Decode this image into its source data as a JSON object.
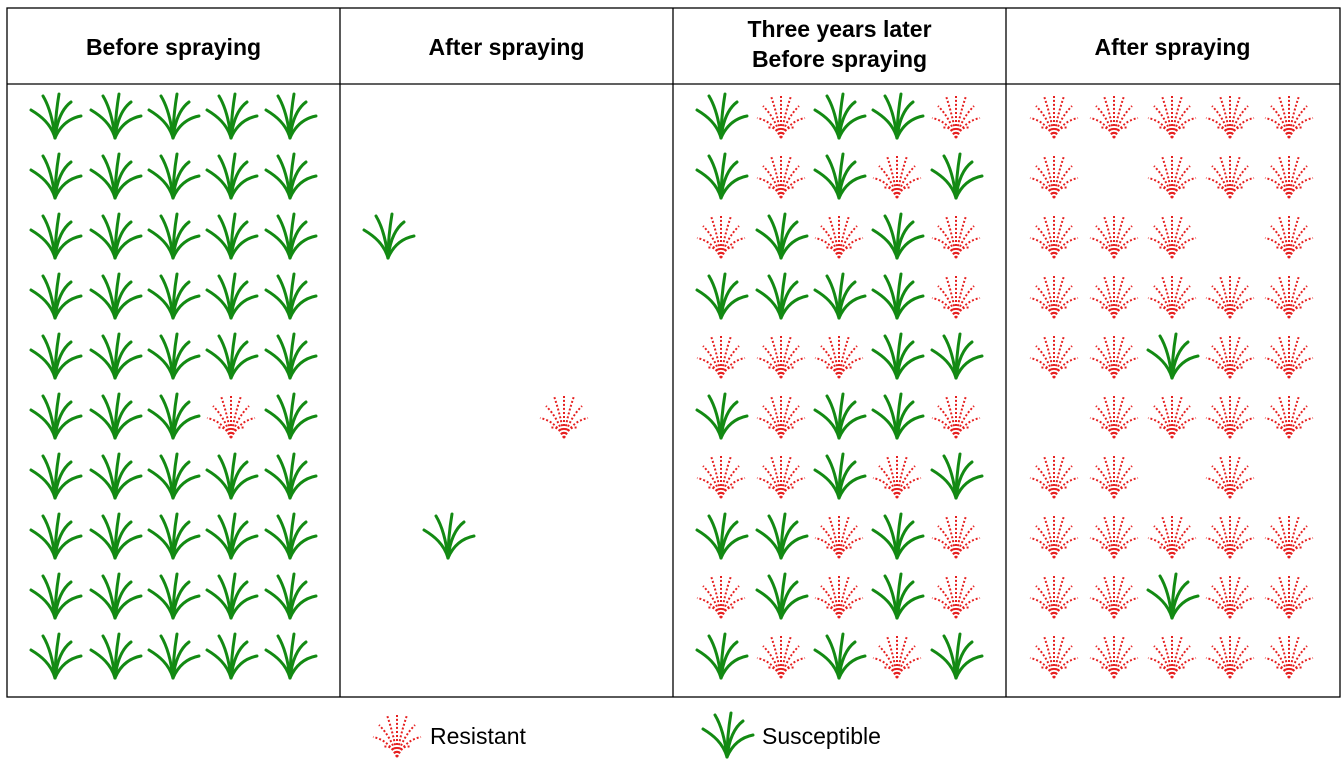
{
  "panels": [
    {
      "title": [
        "Before spraying"
      ]
    },
    {
      "title": [
        "After spraying"
      ]
    },
    {
      "title": [
        "Three years later",
        "Before spraying"
      ]
    },
    {
      "title": [
        "After spraying"
      ]
    }
  ],
  "legend": {
    "resistant": "Resistant",
    "susceptible": "Susceptible"
  }
}
